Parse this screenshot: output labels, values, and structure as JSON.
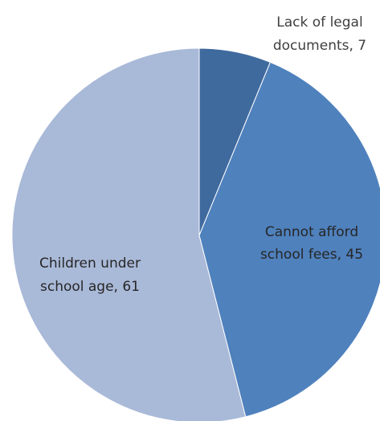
{
  "chart_data": {
    "type": "pie",
    "title": "",
    "start_angle_deg": 0,
    "direction": "clockwise",
    "slices": [
      {
        "category": "Lack of legal documents",
        "value": 7,
        "label_lines": [
          "Lack of legal",
          "documents, 7"
        ],
        "color": "#3f6a9e",
        "label_color": "#3f3f3f",
        "label_position": "outside-top-right"
      },
      {
        "category": "Cannot afford school fees",
        "value": 45,
        "label_lines": [
          "Cannot afford",
          "school fees, 45"
        ],
        "color": "#4f81bd",
        "label_color": "#262626",
        "label_position": "inside"
      },
      {
        "category": "Children under school age",
        "value": 61,
        "label_lines": [
          "Children under",
          "school age, 61"
        ],
        "color": "#a9b9d8",
        "label_color": "#262626",
        "label_position": "inside"
      }
    ],
    "legend": "none"
  }
}
